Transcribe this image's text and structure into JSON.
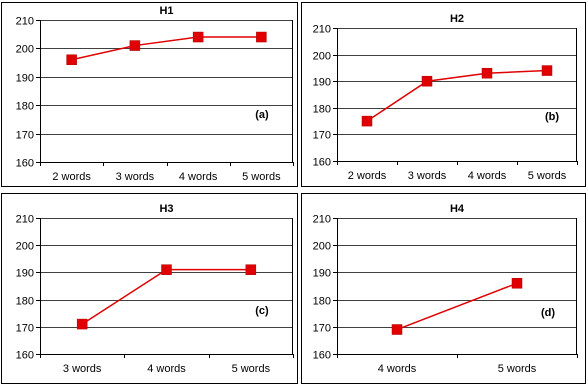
{
  "chart_data": [
    {
      "type": "line",
      "title": "H1",
      "annotation": "(a)",
      "categories": [
        "2 words",
        "3 words",
        "4 words",
        "5 words"
      ],
      "series": [
        {
          "values": [
            196,
            201,
            204,
            204
          ]
        }
      ],
      "ylim": [
        160,
        210
      ],
      "yticks": [
        160,
        170,
        180,
        190,
        200,
        210
      ],
      "grid": true
    },
    {
      "type": "line",
      "title": "H2",
      "annotation": "(b)",
      "categories": [
        "2 words",
        "3 words",
        "4 words",
        "5 words"
      ],
      "series": [
        {
          "values": [
            175,
            190,
            193,
            194
          ]
        }
      ],
      "ylim": [
        160,
        210
      ],
      "yticks": [
        160,
        170,
        180,
        190,
        200,
        210
      ],
      "grid": true
    },
    {
      "type": "line",
      "title": "H3",
      "annotation": "(c)",
      "categories": [
        "3 words",
        "4 words",
        "5 words"
      ],
      "series": [
        {
          "values": [
            171,
            191,
            191
          ]
        }
      ],
      "ylim": [
        160,
        210
      ],
      "yticks": [
        160,
        170,
        180,
        190,
        200,
        210
      ],
      "grid": true
    },
    {
      "type": "line",
      "title": "H4",
      "annotation": "(d)",
      "categories": [
        "4 words",
        "5 words"
      ],
      "series": [
        {
          "values": [
            169,
            186
          ]
        }
      ],
      "ylim": [
        160,
        210
      ],
      "yticks": [
        160,
        170,
        180,
        190,
        200,
        210
      ],
      "grid": true
    }
  ],
  "colors": {
    "series": "#e00000",
    "grid": "#000000",
    "frame": "#000000"
  }
}
